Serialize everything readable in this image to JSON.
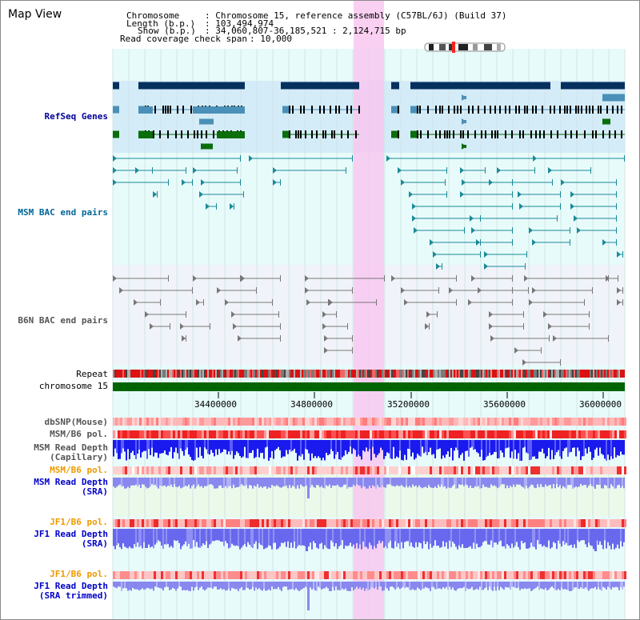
{
  "window": {
    "title": "Map View"
  },
  "info": {
    "chromosome_key": "Chromosome",
    "chromosome_val": ": Chromosome 15, reference assembly (C57BL/6J) (Build 37)",
    "length_key": "Length (b.p.)",
    "length_val": ": 103,494,974",
    "show_key": "Show (b.p.)",
    "show_val": ": 34,060,807-36,185,521 : 2,124,715 bp",
    "span_key": "Read coverage check span",
    "span_val": ": 10,000"
  },
  "tracks": {
    "refseq": {
      "label": "RefSeq Genes",
      "color": "#000099"
    },
    "msm_bac": {
      "label": "MSM BAC end pairs",
      "color": "#006699"
    },
    "b6n_bac": {
      "label": "B6N BAC end pairs",
      "color": "#555555"
    },
    "repeat": {
      "label": "Repeat"
    },
    "chromosome": {
      "label": "chromosome 15"
    },
    "dbsnp": {
      "label": "dbSNP(Mouse)",
      "color": "#555555"
    },
    "msm_b6_pol_1": {
      "label": "MSM/B6 pol.",
      "color": "#555555"
    },
    "msm_read_cap": {
      "label": "MSM Read Depth\n(Capillary)",
      "color": "#555555"
    },
    "msm_b6_pol_2": {
      "label": "MSM/B6 pol.",
      "color": "#ee9900"
    },
    "msm_read_sra": {
      "label": "MSM Read Depth\n(SRA)",
      "color": "#0000cc"
    },
    "jf1_b6_pol_1": {
      "label": "JF1/B6 pol.",
      "color": "#ee9900"
    },
    "jf1_read_sra": {
      "label": "JF1 Read Depth\n(SRA)",
      "color": "#0000cc"
    },
    "jf1_b6_pol_2": {
      "label": "JF1/B6 pol.",
      "color": "#ee9900"
    },
    "jf1_read_trim": {
      "label": "JF1 Read Depth\n(SRA trimmed)",
      "color": "#0000cc"
    }
  },
  "axis": {
    "ticks": [
      "34400000",
      "34800000",
      "35200000",
      "35600000",
      "36000000"
    ]
  },
  "colors": {
    "refseq_dark": "#06305e",
    "refseq_light": "#4a90b8",
    "refseq_green": "#0a6e0a",
    "msm_teal": "#1a8a9a",
    "b6n_gray": "#777777",
    "highlight": "#f8c8f0",
    "chromosome": "#006400"
  }
}
